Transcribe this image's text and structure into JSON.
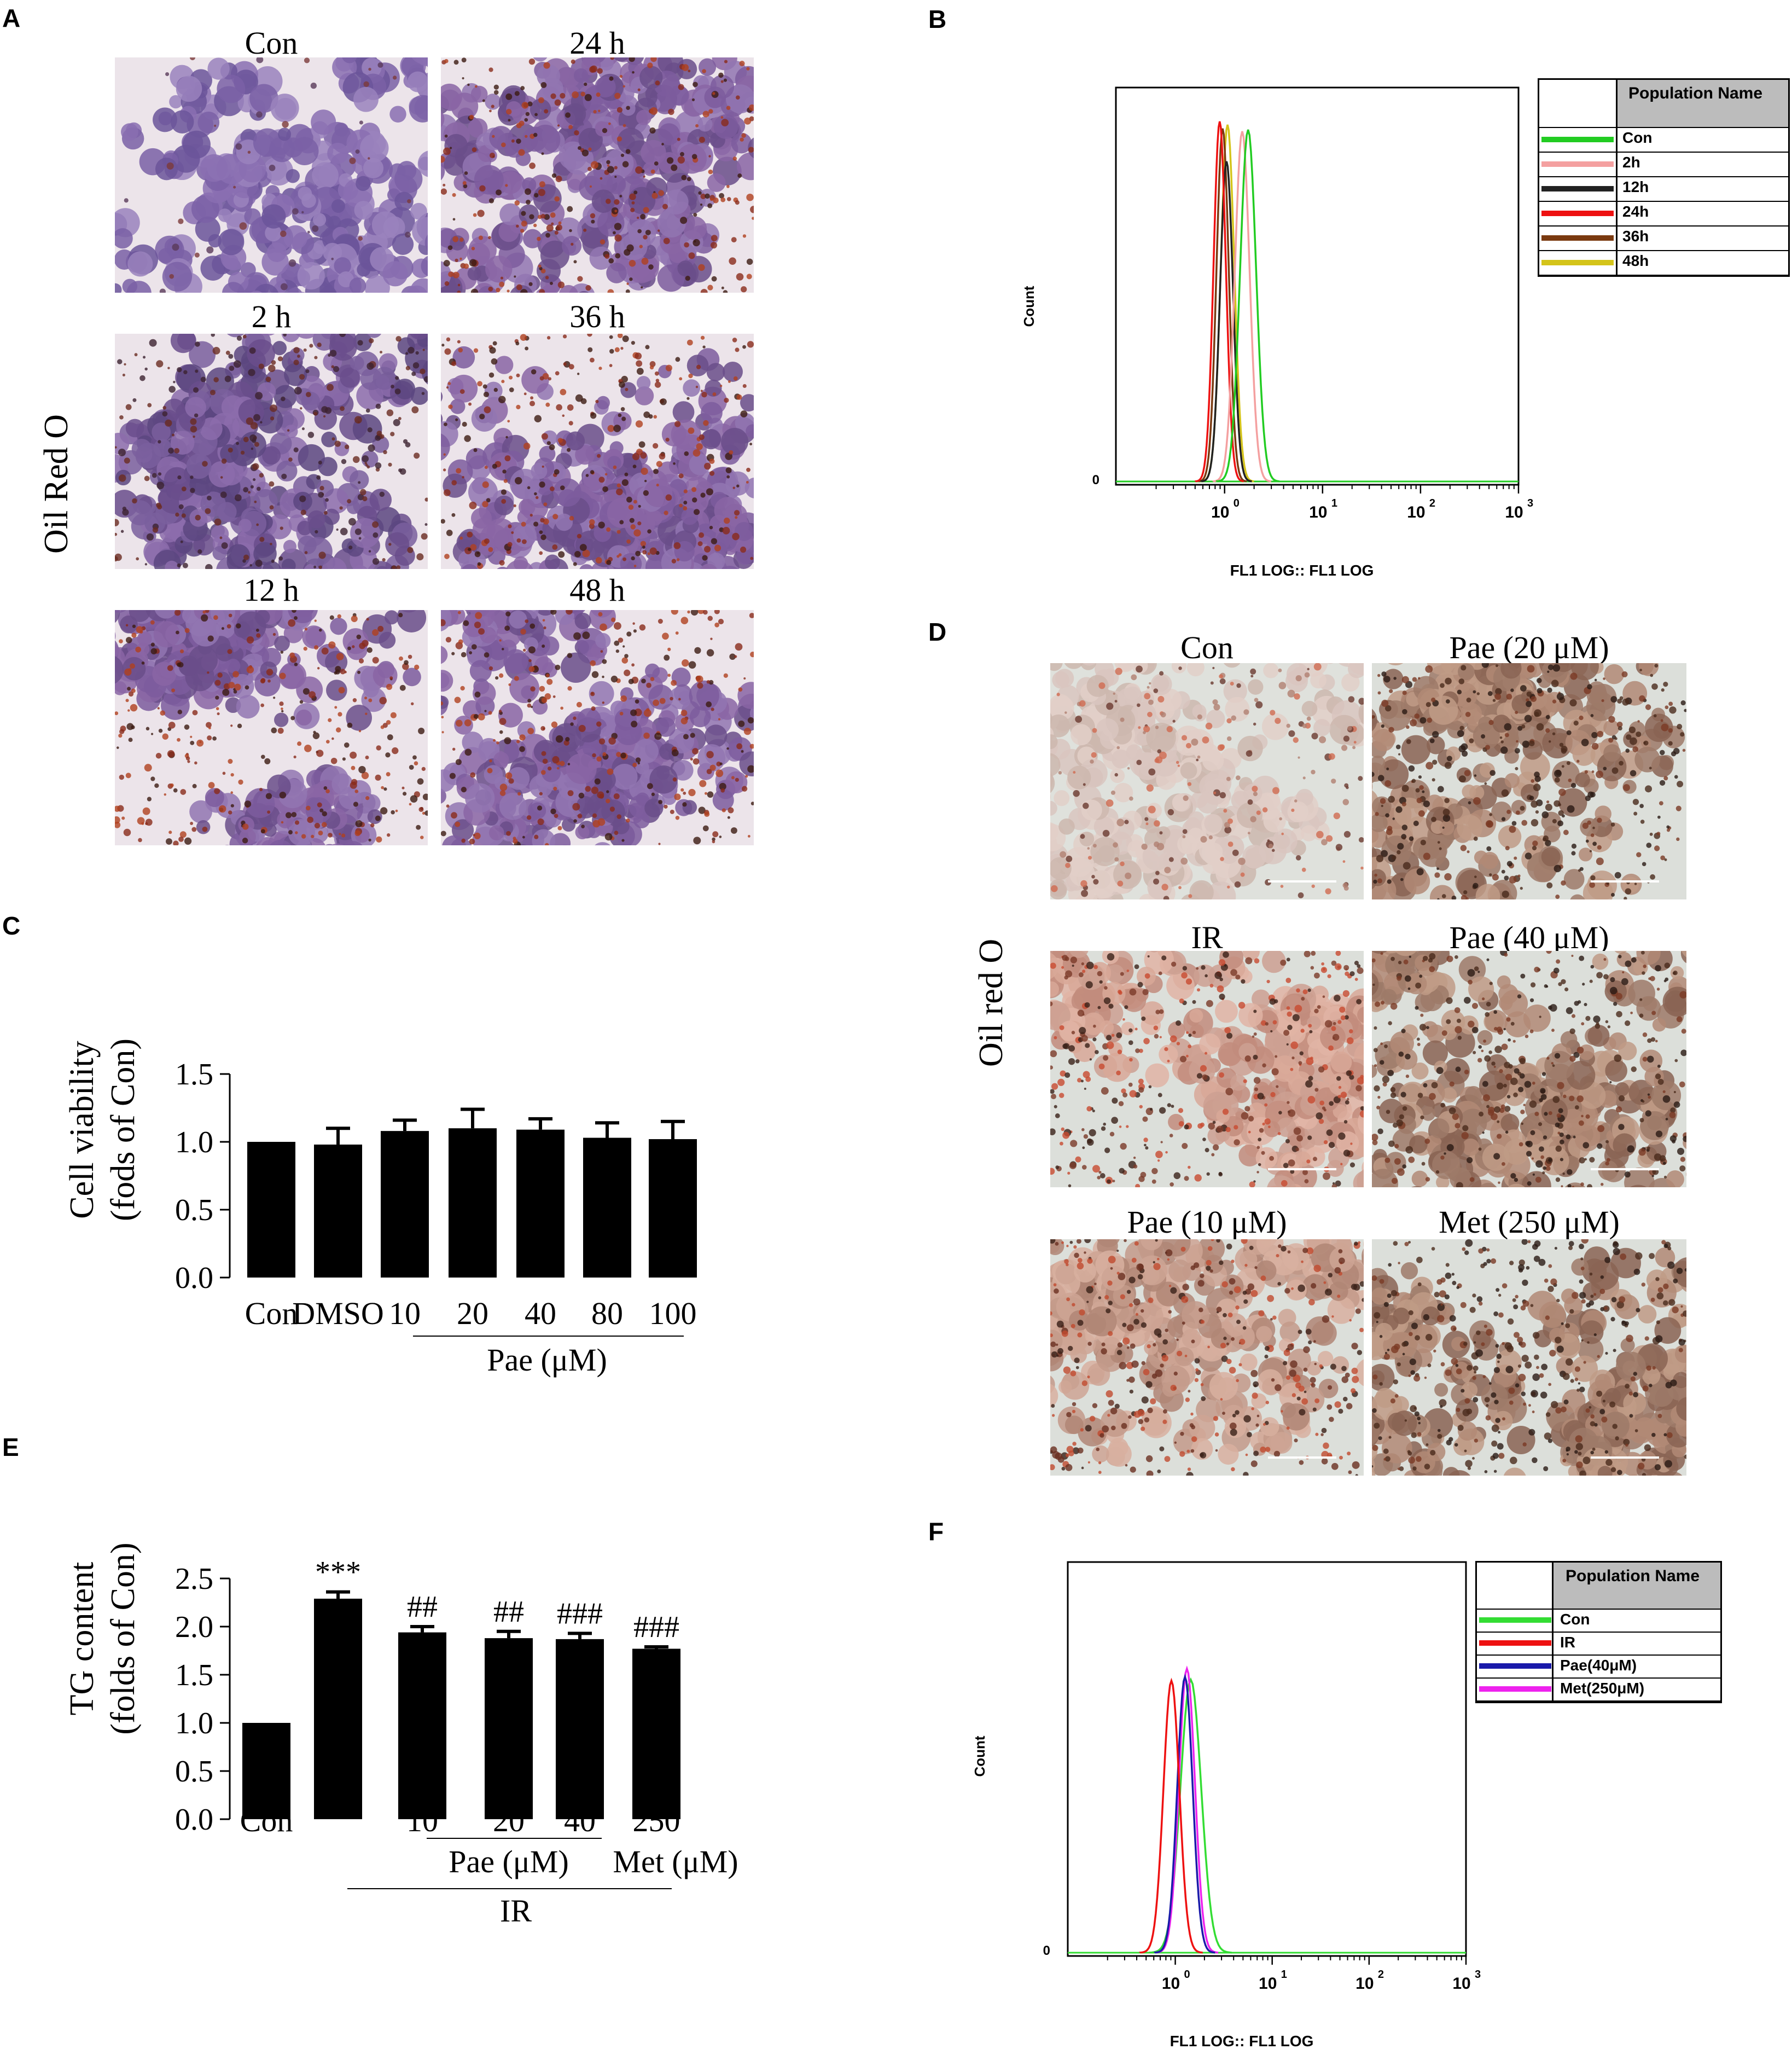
{
  "panels": {
    "A": {
      "label": "A",
      "side_label": "Oil Red O",
      "images": [
        {
          "title": "Con",
          "palette": "purple"
        },
        {
          "title": "24 h",
          "palette": "purple-red"
        },
        {
          "title": "2 h",
          "palette": "purple-dark"
        },
        {
          "title": "36 h",
          "palette": "purple-red"
        },
        {
          "title": "12 h",
          "palette": "purple-red"
        },
        {
          "title": "48 h",
          "palette": "purple-red"
        }
      ]
    },
    "B": {
      "label": "B",
      "ylabel": "Count",
      "xlabel": "FL1 LOG:: FL1 LOG",
      "y_zero": "0",
      "xticks": [
        "10",
        "10",
        "10",
        "10"
      ],
      "xtick_exps": [
        "0",
        "1",
        "2",
        "3"
      ],
      "legend_header": "Population Name",
      "legend": [
        {
          "name": "Con",
          "color": "#22cc22"
        },
        {
          "name": "2h",
          "color": "#f4a0a0"
        },
        {
          "name": "12h",
          "color": "#222222"
        },
        {
          "name": "24h",
          "color": "#ee1111"
        },
        {
          "name": "36h",
          "color": "#7a3a10"
        },
        {
          "name": "48h",
          "color": "#d4c41a"
        }
      ]
    },
    "C": {
      "label": "C",
      "ylabel_line1": "Cell viability",
      "ylabel_line2": "(fods of Con)",
      "group_label": "Pae (μM)"
    },
    "D": {
      "label": "D",
      "side_label": "Oil red O",
      "images": [
        {
          "title": "Con",
          "palette": "light"
        },
        {
          "title": "Pae (20 μM)",
          "palette": "dark"
        },
        {
          "title": "IR",
          "palette": "red"
        },
        {
          "title": "Pae (40 μM)",
          "palette": "dark"
        },
        {
          "title": "Pae (10 μM)",
          "palette": "red-dark"
        },
        {
          "title": "Met (250 μM)",
          "palette": "dark"
        }
      ]
    },
    "E": {
      "label": "E",
      "ylabel_line1": "TG content",
      "ylabel_line2": "(folds of Con)",
      "group_pae": "Pae (μM)",
      "group_met": "Met (μM)",
      "group_ir": "IR"
    },
    "F": {
      "label": "F",
      "ylabel": "Count",
      "xlabel": "FL1 LOG:: FL1 LOG",
      "y_zero": "0",
      "xticks": [
        "10",
        "10",
        "10",
        "10"
      ],
      "xtick_exps": [
        "0",
        "1",
        "2",
        "3"
      ],
      "legend_header": "Population Name",
      "legend": [
        {
          "name": "Con",
          "color": "#33dd33"
        },
        {
          "name": "IR",
          "color": "#ee1111"
        },
        {
          "name": "Pae(40μM)",
          "color": "#1a1aaa"
        },
        {
          "name": "Met(250μM)",
          "color": "#ee22ee"
        }
      ]
    }
  },
  "chart_data": [
    {
      "id": "C",
      "type": "bar",
      "categories": [
        "Con",
        "DMSO",
        "10",
        "20",
        "40",
        "80",
        "100"
      ],
      "values": [
        1.0,
        0.98,
        1.08,
        1.1,
        1.09,
        1.03,
        1.02
      ],
      "errors": [
        0.0,
        0.12,
        0.08,
        0.14,
        0.08,
        0.11,
        0.13
      ],
      "ylim": [
        0,
        1.5
      ],
      "yticks": [
        "0.0",
        "0.5",
        "1.0",
        "1.5"
      ],
      "xlabel": "Pae (μM)",
      "ylabel": "Cell viability (fods of Con)"
    },
    {
      "id": "E",
      "type": "bar",
      "categories": [
        "Con",
        "",
        "10",
        "20",
        "40",
        "250"
      ],
      "values": [
        1.0,
        2.29,
        1.94,
        1.88,
        1.87,
        1.77
      ],
      "errors": [
        0.0,
        0.07,
        0.06,
        0.07,
        0.06,
        0.02
      ],
      "annotations": [
        "",
        "***",
        "##",
        "##",
        "###",
        "###"
      ],
      "ylim": [
        0,
        2.5
      ],
      "yticks": [
        "0.0",
        "0.5",
        "1.0",
        "1.5",
        "2.0",
        "2.5"
      ],
      "ylabel": "TG content (folds of Con)"
    }
  ]
}
